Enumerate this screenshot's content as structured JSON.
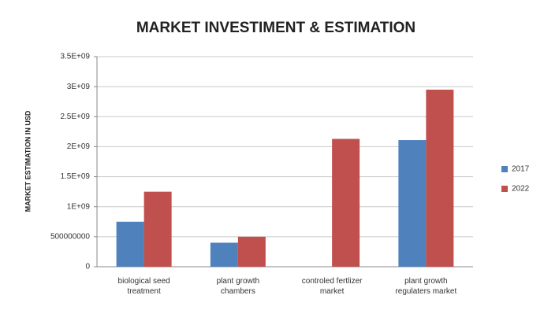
{
  "chart_data": {
    "type": "bar",
    "title": "MARKET INVESTIMENT & ESTIMATION",
    "y_label": "MARKET ESTIMATION IN USD",
    "categories": [
      "biological seed treatment",
      "plant growth chambers",
      "controled fertlizer market",
      "plant growth regulaters market"
    ],
    "series": [
      {
        "name": "2017",
        "color": "#4f81bd",
        "values": [
          750000000,
          400000000,
          0,
          2110000000
        ]
      },
      {
        "name": "2022",
        "color": "#c0504d",
        "values": [
          1250000000,
          500000000,
          2130000000,
          2950000000
        ]
      }
    ],
    "ylim": [
      0,
      3500000000
    ],
    "yticks": [
      0,
      500000000,
      {
        "value": 1000000000,
        "label": "1E+09"
      },
      {
        "value": 1500000000,
        "label": "1.5E+09"
      },
      {
        "value": 2000000000,
        "label": "2E+09"
      },
      {
        "value": 2500000000,
        "label": "2.5E+09"
      },
      {
        "value": 3000000000,
        "label": "3E+09"
      },
      {
        "value": 3500000000,
        "label": "3.5E+09"
      }
    ],
    "grid": true,
    "legend": "right"
  }
}
